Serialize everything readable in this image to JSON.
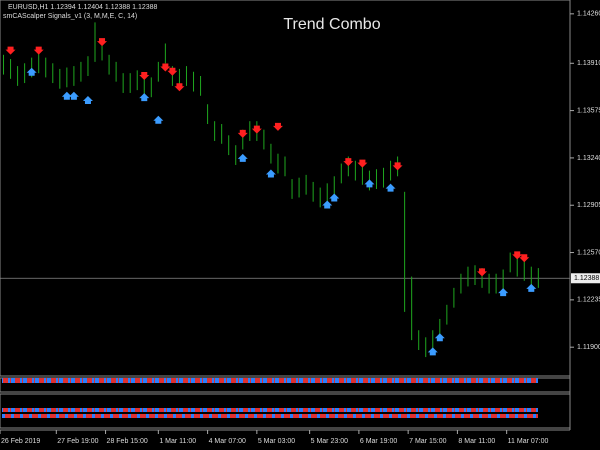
{
  "chart_data": {
    "type": "ohlc",
    "title": "Trend Combo",
    "symbol_info": "EURUSD,H1  1.12394 1.12404 1.12388 1.12388",
    "indicator_info": "smCAScalper Signals_v1 (3, M,M,E, C, 14)",
    "color": "#1fa81f",
    "high": [
      1.1397,
      1.1394,
      1.1389,
      1.1391,
      1.1395,
      1.1398,
      1.1395,
      1.1391,
      1.1387,
      1.1388,
      1.1389,
      1.1392,
      1.1396,
      1.142,
      1.1407,
      1.1397,
      1.1392,
      1.1384,
      1.1384,
      1.1386,
      1.1383,
      1.1381,
      1.1392,
      1.1405,
      1.1389,
      1.1387,
      1.1389,
      1.1385,
      1.1382,
      1.1362,
      1.135,
      1.1348,
      1.134,
      1.1333,
      1.1344,
      1.135,
      1.135,
      1.1344,
      1.1334,
      1.1327,
      1.1325,
      1.1309,
      1.131,
      1.1312,
      1.1307,
      1.1303,
      1.1306,
      1.1311,
      1.132,
      1.1325,
      1.1322,
      1.1319,
      1.1315,
      1.1316,
      1.1317,
      1.1322,
      1.1325,
      1.13,
      1.124,
      1.1202,
      1.1197,
      1.1202,
      1.121,
      1.122,
      1.1232,
      1.1242,
      1.1247,
      1.1248,
      1.1246,
      1.1242,
      1.1242,
      1.1245,
      1.1257,
      1.1254,
      1.1251,
      1.1247,
      1.1246
    ],
    "low": [
      1.1383,
      1.138,
      1.1375,
      1.1377,
      1.1381,
      1.1384,
      1.1381,
      1.1377,
      1.1373,
      1.1374,
      1.1375,
      1.1378,
      1.1382,
      1.1392,
      1.1393,
      1.1383,
      1.1378,
      1.137,
      1.137,
      1.1372,
      1.1369,
      1.1367,
      1.1378,
      1.1391,
      1.1375,
      1.1373,
      1.1375,
      1.1371,
      1.1368,
      1.1348,
      1.1336,
      1.1334,
      1.1326,
      1.1319,
      1.133,
      1.1336,
      1.1336,
      1.133,
      1.132,
      1.1313,
      1.1311,
      1.1295,
      1.1296,
      1.1298,
      1.1293,
      1.1289,
      1.1292,
      1.1297,
      1.1306,
      1.1311,
      1.1308,
      1.1305,
      1.1301,
      1.1302,
      1.1303,
      1.1308,
      1.1311,
      1.1215,
      1.1195,
      1.1188,
      1.1183,
      1.1188,
      1.1196,
      1.1206,
      1.1218,
      1.1228,
      1.1233,
      1.1234,
      1.1232,
      1.1228,
      1.1228,
      1.1231,
      1.1243,
      1.124,
      1.1237,
      1.1233,
      1.1232
    ],
    "sell": {
      "color": "#ff2020",
      "x": [
        1,
        5,
        14,
        20,
        23,
        24,
        25,
        34,
        36,
        39,
        49,
        51,
        56,
        68,
        73,
        74
      ],
      "y": [
        1.14,
        1.14,
        1.1406,
        1.1382,
        1.1388,
        1.1385,
        1.1374,
        1.1341,
        1.1344,
        1.1346,
        1.1321,
        1.132,
        1.1318,
        1.1243,
        1.1255,
        1.1253
      ]
    },
    "buy": {
      "color": "#3b9cff",
      "x": [
        4,
        9,
        10,
        12,
        20,
        22,
        34,
        38,
        46,
        47,
        52,
        55,
        61,
        62,
        71,
        75
      ],
      "y": [
        1.1385,
        1.1368,
        1.1368,
        1.1365,
        1.1367,
        1.1351,
        1.1324,
        1.1313,
        1.1291,
        1.1296,
        1.1306,
        1.1303,
        1.1187,
        1.1197,
        1.1229,
        1.1232
      ]
    },
    "last_price": 1.12388,
    "xlim": [
      0,
      81
    ],
    "xticks": [
      {
        "value": 0,
        "label": "26 Feb 2019"
      },
      {
        "value": 8,
        "label": "27 Feb 19:00"
      },
      {
        "value": 15,
        "label": "28 Feb 15:00"
      },
      {
        "value": 22.5,
        "label": "1 Mar 11:00"
      },
      {
        "value": 29.5,
        "label": "4 Mar 07:00"
      },
      {
        "value": 36.5,
        "label": "5 Mar 03:00"
      },
      {
        "value": 44,
        "label": "5 Mar 23:00"
      },
      {
        "value": 51,
        "label": "6 Mar 19:00"
      },
      {
        "value": 58,
        "label": "7 Mar 15:00"
      },
      {
        "value": 65,
        "label": "8 Mar 11:00"
      },
      {
        "value": 72,
        "label": "11 Mar 07:00"
      }
    ],
    "ylim": [
      1.11696,
      1.14358
    ],
    "yticks": [
      {
        "value": 1.1426,
        "label": "1.14260"
      },
      {
        "value": 1.1391,
        "label": "1.13910"
      },
      1.13575,
      {
        "value": 1.1324,
        "label": "1.13240"
      },
      1.12905,
      {
        "value": 1.1257,
        "label": "1.12570"
      },
      1.12235,
      {
        "value": 1.119,
        "label": "1.11900"
      }
    ]
  }
}
